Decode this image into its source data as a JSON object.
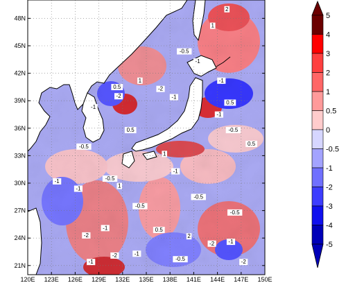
{
  "map": {
    "lon_range": [
      120,
      150
    ],
    "lat_range": [
      20,
      50
    ],
    "lon_ticks": [
      {
        "value": 120,
        "label": "120E"
      },
      {
        "value": 123,
        "label": "123E"
      },
      {
        "value": 126,
        "label": "126E"
      },
      {
        "value": 129,
        "label": "129E"
      },
      {
        "value": 132,
        "label": "132E"
      },
      {
        "value": 135,
        "label": "135E"
      },
      {
        "value": 138,
        "label": "138E"
      },
      {
        "value": 141,
        "label": "141E"
      },
      {
        "value": 144,
        "label": "144E"
      },
      {
        "value": 147,
        "label": "147E"
      },
      {
        "value": 150,
        "label": "150E"
      }
    ],
    "lat_ticks": [
      {
        "value": 21,
        "label": "21N"
      },
      {
        "value": 24,
        "label": "24N"
      },
      {
        "value": 27,
        "label": "27N"
      },
      {
        "value": 30,
        "label": "30N"
      },
      {
        "value": 33,
        "label": "33N"
      },
      {
        "value": 36,
        "label": "36N"
      },
      {
        "value": 39,
        "label": "39N"
      },
      {
        "value": 42,
        "label": "42N"
      },
      {
        "value": 45,
        "label": "45N"
      },
      {
        "value": 48,
        "label": "48N"
      }
    ],
    "grid": "dotted",
    "contour_labels": [
      {
        "lon": 128.3,
        "lat": 38.1,
        "text": "-1"
      },
      {
        "lon": 131.3,
        "lat": 40.3,
        "text": "0.5"
      },
      {
        "lon": 131.5,
        "lat": 39.3,
        "text": "-2"
      },
      {
        "lon": 134.2,
        "lat": 41.0,
        "text": "1"
      },
      {
        "lon": 136.8,
        "lat": 40.1,
        "text": "-2"
      },
      {
        "lon": 138.5,
        "lat": 39.2,
        "text": "-1"
      },
      {
        "lon": 139.8,
        "lat": 44.2,
        "text": "-0.5"
      },
      {
        "lon": 141.5,
        "lat": 43.1,
        "text": "-1"
      },
      {
        "lon": 143.4,
        "lat": 47.0,
        "text": "1"
      },
      {
        "lon": 145.2,
        "lat": 48.8,
        "text": "2"
      },
      {
        "lon": 144.5,
        "lat": 41.0,
        "text": "-1"
      },
      {
        "lon": 145.6,
        "lat": 38.6,
        "text": "0.5"
      },
      {
        "lon": 144.2,
        "lat": 37.3,
        "text": "-1"
      },
      {
        "lon": 146.0,
        "lat": 35.6,
        "text": "-0.5"
      },
      {
        "lon": 148.3,
        "lat": 34.1,
        "text": "0.5"
      },
      {
        "lon": 133.0,
        "lat": 35.6,
        "text": "0.5"
      },
      {
        "lon": 127.1,
        "lat": 33.8,
        "text": "-0.5"
      },
      {
        "lon": 137.3,
        "lat": 33.0,
        "text": "1"
      },
      {
        "lon": 138.7,
        "lat": 31.1,
        "text": "-1"
      },
      {
        "lon": 130.4,
        "lat": 30.3,
        "text": "-0.5"
      },
      {
        "lon": 123.7,
        "lat": 30.0,
        "text": "-1"
      },
      {
        "lon": 126.4,
        "lat": 29.2,
        "text": "-1"
      },
      {
        "lon": 131.6,
        "lat": 29.5,
        "text": "1"
      },
      {
        "lon": 134.2,
        "lat": 27.3,
        "text": "-0.5"
      },
      {
        "lon": 141.6,
        "lat": 28.3,
        "text": "-0.5"
      },
      {
        "lon": 146.2,
        "lat": 26.6,
        "text": "-0.5"
      },
      {
        "lon": 127.4,
        "lat": 24.1,
        "text": "-2"
      },
      {
        "lon": 129.8,
        "lat": 24.9,
        "text": "-1"
      },
      {
        "lon": 136.6,
        "lat": 24.7,
        "text": "0.5"
      },
      {
        "lon": 140.4,
        "lat": 24.0,
        "text": "2"
      },
      {
        "lon": 143.3,
        "lat": 23.2,
        "text": "-2"
      },
      {
        "lon": 145.7,
        "lat": 23.4,
        "text": "-1"
      },
      {
        "lon": 131.0,
        "lat": 21.9,
        "text": "-2"
      },
      {
        "lon": 133.8,
        "lat": 22.1,
        "text": "-1"
      },
      {
        "lon": 128.0,
        "lat": 21.2,
        "text": "-1"
      },
      {
        "lon": 139.3,
        "lat": 21.5,
        "text": "-0.5"
      },
      {
        "lon": 147.3,
        "lat": 21.2,
        "text": "-2"
      }
    ]
  },
  "colorbar": {
    "labels": [
      "5",
      "4",
      "3",
      "2",
      "1",
      "0.5",
      "0",
      "-0.5",
      "-1",
      "-2",
      "-3",
      "-4",
      "-5"
    ],
    "colors": [
      "#6b0000",
      "#ff0000",
      "#ff3f3f",
      "#ff6666",
      "#ff9a9a",
      "#ffcccc",
      "#d6d6ff",
      "#a3a3ff",
      "#7070ff",
      "#3d3dff",
      "#1010ee",
      "#0000b8"
    ]
  }
}
